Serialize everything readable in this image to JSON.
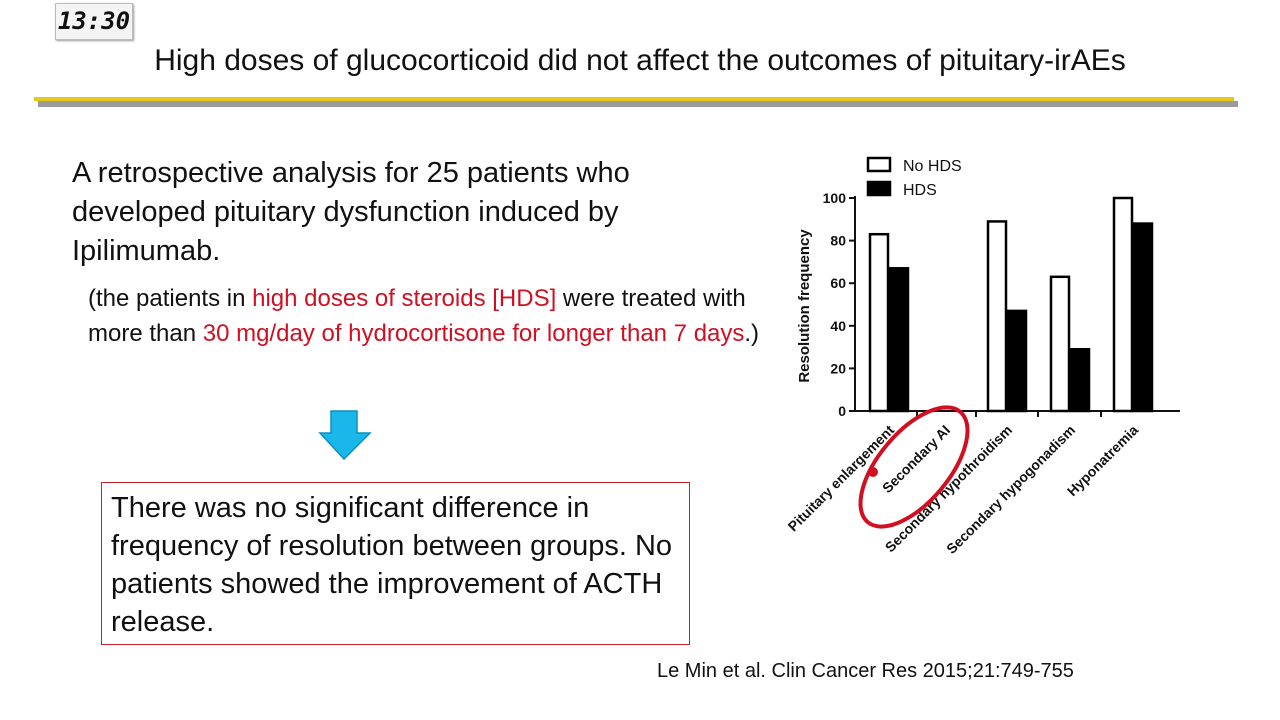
{
  "timer": "13:30",
  "slide": {
    "title": "High doses of glucocorticoid did not affect the outcomes of pituitary-irAEs",
    "intro": "A retrospective analysis for 25 patients who developed pituitary dysfunction induced by Ipilimumab.",
    "note": {
      "p1": "(the patients in ",
      "r1": "high doses of steroids [HDS]",
      "p2": " were treated with more than ",
      "r2": "30 mg/day of hydrocortisone for longer than 7 days",
      "p3": ".)"
    },
    "conclusion": "There was no significant difference in frequency of resolution between groups. No patients showed the improvement of ACTH release.",
    "citation": "Le Min et al. Clin Cancer Res 2015;21:749-755"
  },
  "colors": {
    "accent_red": "#d01022",
    "arrow": "#1ab7ea",
    "rule": "#e5c81b"
  },
  "chart_data": {
    "type": "bar",
    "ylabel": "Resolution frequency",
    "ylim": [
      0,
      100
    ],
    "yticks": [
      0,
      20,
      40,
      60,
      80,
      100
    ],
    "categories": [
      "Pituitary enlargement",
      "Secondary AI",
      "Secondary hypothroidism",
      "Secondary hypogonadism",
      "Hyponatremia"
    ],
    "series": [
      {
        "name": "No HDS",
        "fill": "#ffffff",
        "values": [
          83,
          null,
          89,
          63,
          100
        ]
      },
      {
        "name": "HDS",
        "fill": "#000000",
        "values": [
          67,
          null,
          47,
          29,
          88
        ]
      }
    ],
    "legend_position": "top-left",
    "highlighted_category": "Secondary AI"
  }
}
